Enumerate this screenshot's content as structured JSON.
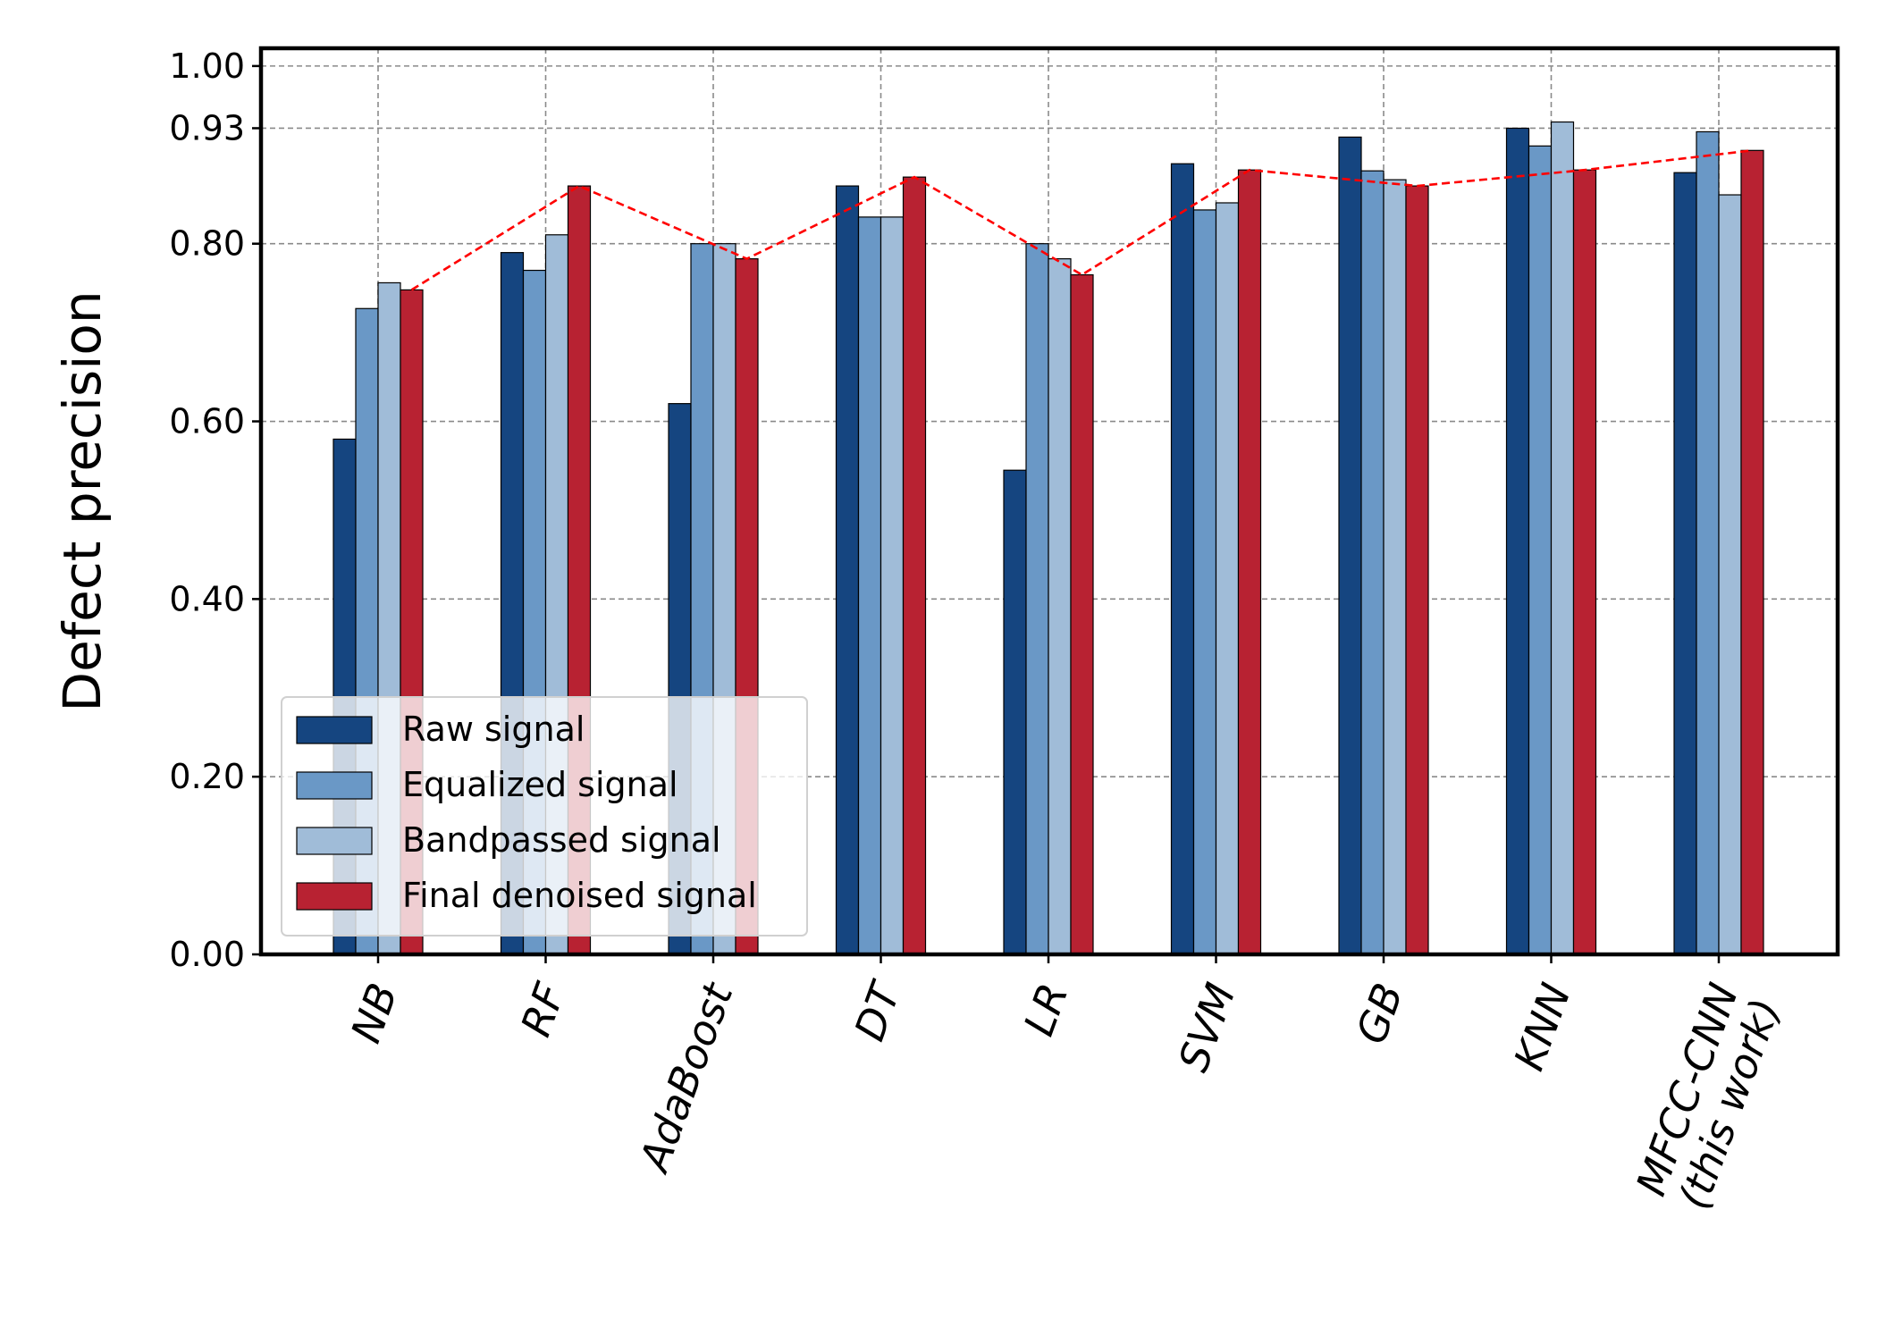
{
  "chart_data": {
    "type": "bar",
    "title": "",
    "xlabel": "",
    "ylabel": "Defect precision",
    "ylim": [
      0,
      1.02
    ],
    "yticks": [
      "0.00",
      "0.20",
      "0.40",
      "0.60",
      "0.80",
      "0.93",
      "1.00"
    ],
    "grid": true,
    "legend_position": "lower-left",
    "categories": [
      "NB",
      "RF",
      "AdaBoost",
      "DT",
      "LR",
      "SVM",
      "GB",
      "KNN",
      "MFCC-CNN\n(this work)"
    ],
    "series": [
      {
        "name": "Raw signal",
        "color": "#154580",
        "values": [
          0.58,
          0.79,
          0.62,
          0.865,
          0.545,
          0.89,
          0.92,
          0.93,
          0.88
        ]
      },
      {
        "name": "Equalized signal",
        "color": "#6a98c6",
        "values": [
          0.727,
          0.77,
          0.8,
          0.83,
          0.8,
          0.838,
          0.882,
          0.91,
          0.926
        ]
      },
      {
        "name": "Bandpassed signal",
        "color": "#a0bcd8",
        "values": [
          0.756,
          0.81,
          0.8,
          0.83,
          0.783,
          0.846,
          0.872,
          0.937,
          0.855
        ]
      },
      {
        "name": "Final denoised signal",
        "color": "#b82232",
        "values": [
          0.748,
          0.865,
          0.783,
          0.875,
          0.765,
          0.883,
          0.865,
          0.883,
          0.905
        ]
      }
    ],
    "trend_line": {
      "series": "Final denoised signal",
      "color": "#ff0000",
      "style": "dashed"
    }
  }
}
